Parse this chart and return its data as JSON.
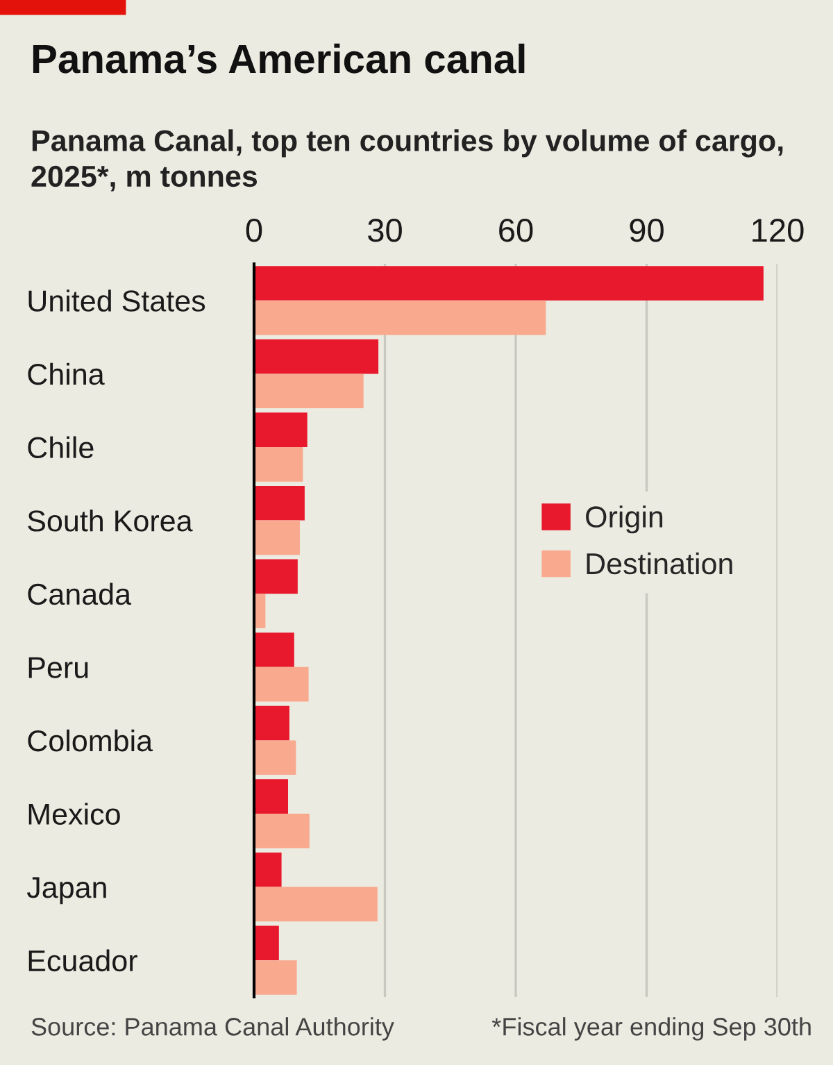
{
  "chart_data": {
    "type": "bar",
    "orientation": "horizontal",
    "title": "Panama’s American canal",
    "subtitle": "Panama Canal, top ten countries by volume of cargo, 2025*, m tonnes",
    "categories": [
      "United States",
      "China",
      "Chile",
      "South Korea",
      "Canada",
      "Peru",
      "Colombia",
      "Mexico",
      "Japan",
      "Ecuador"
    ],
    "series": [
      {
        "name": "Origin",
        "color": "#e8192c",
        "values": [
          116.8,
          28.5,
          12.2,
          11.6,
          10.0,
          9.2,
          8.1,
          7.8,
          6.3,
          5.7
        ]
      },
      {
        "name": "Destination",
        "color": "#f9a98e",
        "values": [
          66.9,
          25.1,
          11.2,
          10.5,
          2.6,
          12.5,
          9.6,
          12.7,
          28.3,
          9.8
        ]
      }
    ],
    "xlim": [
      0,
      120
    ],
    "xticks": [
      0,
      30,
      60,
      90,
      120
    ],
    "grid": "x",
    "legend": "right",
    "annotations": [
      "Source: Panama Canal Authority",
      "*Fiscal year ending Sep 30th"
    ]
  }
}
